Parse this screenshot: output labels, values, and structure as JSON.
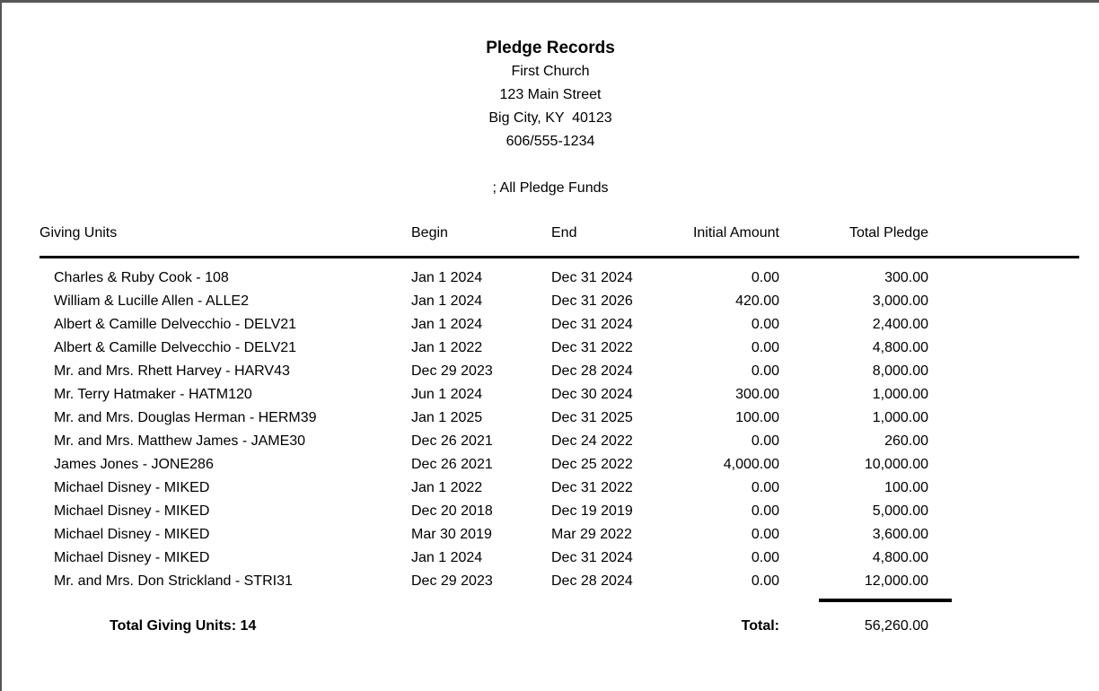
{
  "report": {
    "title": "Pledge Records",
    "org_name": "First Church",
    "address_line1": "123 Main Street",
    "address_line2": "Big City, KY  40123",
    "phone": "606/555-1234",
    "filter_line": "; All Pledge Funds"
  },
  "table": {
    "columns": [
      "Giving Units",
      "Begin",
      "End",
      "Initial Amount",
      "Total Pledge"
    ],
    "rows": [
      {
        "unit": "Charles & Ruby Cook - 108",
        "begin": "Jan 1 2024",
        "end": "Dec 31 2024",
        "initial": "0.00",
        "total": "300.00"
      },
      {
        "unit": "William & Lucille Allen - ALLE2",
        "begin": "Jan 1 2024",
        "end": "Dec 31 2026",
        "initial": "420.00",
        "total": "3,000.00"
      },
      {
        "unit": "Albert & Camille Delvecchio - DELV21",
        "begin": "Jan 1 2024",
        "end": "Dec 31 2024",
        "initial": "0.00",
        "total": "2,400.00"
      },
      {
        "unit": "Albert & Camille Delvecchio - DELV21",
        "begin": "Jan 1 2022",
        "end": "Dec 31 2022",
        "initial": "0.00",
        "total": "4,800.00"
      },
      {
        "unit": "Mr. and Mrs. Rhett Harvey - HARV43",
        "begin": "Dec 29 2023",
        "end": "Dec 28 2024",
        "initial": "0.00",
        "total": "8,000.00"
      },
      {
        "unit": "Mr. Terry Hatmaker - HATM120",
        "begin": "Jun 1 2024",
        "end": "Dec 30 2024",
        "initial": "300.00",
        "total": "1,000.00"
      },
      {
        "unit": "Mr. and Mrs. Douglas Herman - HERM39",
        "begin": "Jan 1 2025",
        "end": "Dec 31 2025",
        "initial": "100.00",
        "total": "1,000.00"
      },
      {
        "unit": "Mr. and Mrs. Matthew James - JAME30",
        "begin": "Dec 26 2021",
        "end": "Dec 24 2022",
        "initial": "0.00",
        "total": "260.00"
      },
      {
        "unit": "James Jones - JONE286",
        "begin": "Dec 26 2021",
        "end": "Dec 25 2022",
        "initial": "4,000.00",
        "total": "10,000.00"
      },
      {
        "unit": "Michael Disney - MIKED",
        "begin": "Jan 1 2022",
        "end": "Dec 31 2022",
        "initial": "0.00",
        "total": "100.00"
      },
      {
        "unit": "Michael Disney - MIKED",
        "begin": "Dec 20 2018",
        "end": "Dec 19 2019",
        "initial": "0.00",
        "total": "5,000.00"
      },
      {
        "unit": "Michael Disney - MIKED",
        "begin": "Mar 30 2019",
        "end": "Mar 29 2022",
        "initial": "0.00",
        "total": "3,600.00"
      },
      {
        "unit": "Michael Disney - MIKED",
        "begin": "Jan 1 2024",
        "end": "Dec 31 2024",
        "initial": "0.00",
        "total": "4,800.00"
      },
      {
        "unit": "Mr. and Mrs. Don Strickland - STRI31",
        "begin": "Dec 29 2023",
        "end": "Dec 28 2024",
        "initial": "0.00",
        "total": "12,000.00"
      }
    ],
    "summary": {
      "total_giving_units": "Total Giving Units: 14",
      "total_label": "Total:",
      "total_value": "56,260.00"
    }
  },
  "colors": {
    "window_border": "#565656",
    "text": "#000000",
    "background": "#ffffff"
  }
}
